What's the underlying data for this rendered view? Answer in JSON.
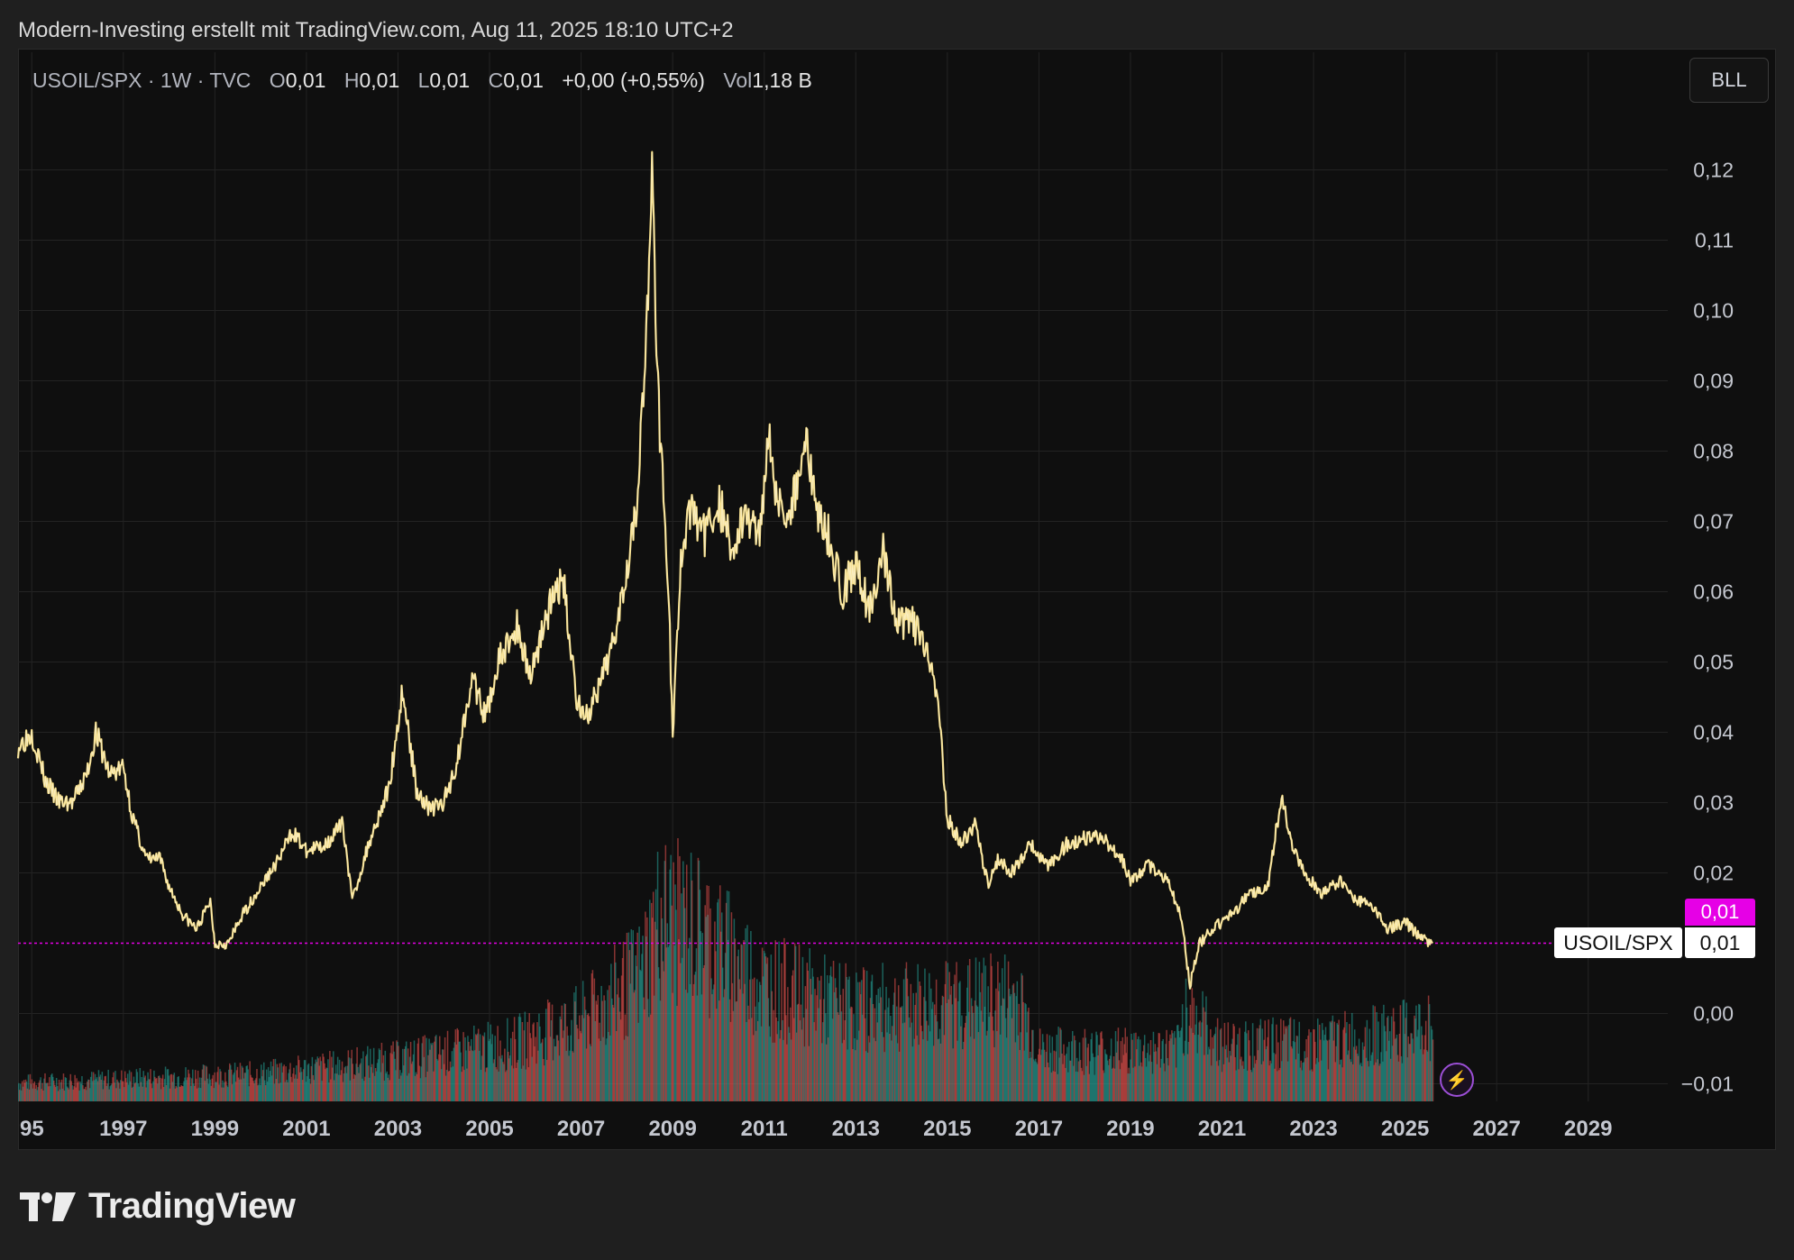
{
  "caption": "Modern-Investing erstellt mit TradingView.com, Aug 11, 2025 18:10 UTC+2",
  "legend": {
    "symbol": "USOIL/SPX · 1W · TVC",
    "open_label": "O",
    "open": "0,01",
    "high_label": "H",
    "high": "0,01",
    "low_label": "L",
    "low": "0,01",
    "close_label": "C",
    "close": "0,01",
    "change": "+0,00 (+0,55%)",
    "vol_label": "Vol",
    "vol": "1,18 B"
  },
  "scale_button": "BLL",
  "price_tags": {
    "pink": "0,01",
    "symbol": "USOIL/SPX",
    "last": "0,01"
  },
  "brand": "TradingView",
  "colors": {
    "background": "#0f0f0f",
    "line": "#f3d97a",
    "line_highlight": "#ffffff",
    "price_line": "#e600e6",
    "volume_up": "#26a69a",
    "volume_down": "#ef5350"
  },
  "chart_data": {
    "type": "line",
    "title": "",
    "xlabel": "",
    "ylabel": "",
    "y_ticks": [
      "0,12",
      "0,11",
      "0,10",
      "0,09",
      "0,08",
      "0,07",
      "0,06",
      "0,05",
      "0,04",
      "0,03",
      "0,02",
      "0,00",
      "−0,01"
    ],
    "y_tick_values": [
      0.12,
      0.11,
      0.1,
      0.09,
      0.08,
      0.07,
      0.06,
      0.05,
      0.04,
      0.03,
      0.02,
      0.0,
      -0.01
    ],
    "x_ticks": [
      "95",
      "1997",
      "1999",
      "2001",
      "2003",
      "2005",
      "2007",
      "2009",
      "2011",
      "2013",
      "2015",
      "2017",
      "2019",
      "2021",
      "2023",
      "2025",
      "2027",
      "2029"
    ],
    "x_tick_values": [
      1995,
      1997,
      1999,
      2001,
      2003,
      2005,
      2007,
      2009,
      2011,
      2013,
      2015,
      2017,
      2019,
      2021,
      2023,
      2025,
      2027,
      2029
    ],
    "xlim": [
      1994.7,
      2030.6
    ],
    "ylim": [
      -0.0125,
      0.1275
    ],
    "last_price": 0.01,
    "grid": true,
    "series": [
      {
        "x": [
          1994.7,
          1995.0,
          1995.3,
          1995.6,
          1995.9,
          1996.2,
          1996.4,
          1996.7,
          1997.0,
          1997.2,
          1997.5,
          1997.8,
          1998.0,
          1998.3,
          1998.6,
          1998.9,
          1999.0,
          1999.3,
          1999.6,
          2000.0,
          2000.4,
          2000.7,
          2001.0,
          2001.4,
          2001.8,
          2002.0,
          2002.4,
          2002.8,
          2003.1,
          2003.4,
          2003.7,
          2004.0,
          2004.3,
          2004.6,
          2004.9,
          2005.2,
          2005.6,
          2005.9,
          2006.2,
          2006.6,
          2006.9,
          2007.1,
          2007.4,
          2007.7,
          2008.0,
          2008.2,
          2008.4,
          2008.55,
          2008.7,
          2008.9,
          2009.0,
          2009.2,
          2009.4,
          2009.7,
          2010.0,
          2010.3,
          2010.6,
          2010.9,
          2011.1,
          2011.3,
          2011.6,
          2011.9,
          2012.1,
          2012.4,
          2012.7,
          2013.0,
          2013.3,
          2013.6,
          2013.9,
          2014.2,
          2014.5,
          2014.8,
          2015.0,
          2015.3,
          2015.6,
          2015.9,
          2016.1,
          2016.4,
          2016.8,
          2017.2,
          2017.6,
          2018.0,
          2018.4,
          2018.8,
          2019.0,
          2019.4,
          2019.8,
          2020.1,
          2020.3,
          2020.5,
          2020.8,
          2021.2,
          2021.6,
          2022.0,
          2022.3,
          2022.5,
          2022.8,
          2023.2,
          2023.6,
          2023.9,
          2024.2,
          2024.6,
          2025.0,
          2025.3,
          2025.6
        ],
        "y": [
          0.038,
          0.04,
          0.033,
          0.03,
          0.03,
          0.034,
          0.04,
          0.034,
          0.035,
          0.028,
          0.022,
          0.022,
          0.018,
          0.014,
          0.012,
          0.016,
          0.01,
          0.01,
          0.014,
          0.018,
          0.022,
          0.026,
          0.023,
          0.024,
          0.027,
          0.016,
          0.025,
          0.032,
          0.046,
          0.032,
          0.029,
          0.03,
          0.036,
          0.048,
          0.042,
          0.05,
          0.055,
          0.048,
          0.056,
          0.062,
          0.045,
          0.042,
          0.046,
          0.053,
          0.064,
          0.072,
          0.092,
          0.118,
          0.086,
          0.062,
          0.04,
          0.066,
          0.072,
          0.068,
          0.073,
          0.066,
          0.071,
          0.068,
          0.084,
          0.072,
          0.072,
          0.082,
          0.073,
          0.068,
          0.06,
          0.064,
          0.057,
          0.066,
          0.055,
          0.056,
          0.052,
          0.044,
          0.028,
          0.024,
          0.027,
          0.018,
          0.022,
          0.02,
          0.024,
          0.021,
          0.024,
          0.025,
          0.025,
          0.022,
          0.019,
          0.021,
          0.019,
          0.014,
          0.004,
          0.01,
          0.012,
          0.014,
          0.017,
          0.018,
          0.031,
          0.024,
          0.02,
          0.017,
          0.019,
          0.016,
          0.016,
          0.012,
          0.013,
          0.011,
          0.01
        ]
      }
    ],
    "volume": {
      "x_start": 1994.7,
      "x_end": 2025.6,
      "profile": [
        {
          "x": 1994.7,
          "level": 0.08
        },
        {
          "x": 2000.0,
          "level": 0.12
        },
        {
          "x": 2003.0,
          "level": 0.18
        },
        {
          "x": 2005.5,
          "level": 0.25
        },
        {
          "x": 2007.0,
          "level": 0.35
        },
        {
          "x": 2008.3,
          "level": 0.55
        },
        {
          "x": 2008.7,
          "level": 0.8
        },
        {
          "x": 2009.5,
          "level": 0.75
        },
        {
          "x": 2011.0,
          "level": 0.5
        },
        {
          "x": 2013.0,
          "level": 0.4
        },
        {
          "x": 2015.0,
          "level": 0.42
        },
        {
          "x": 2016.5,
          "level": 0.45
        },
        {
          "x": 2017.0,
          "level": 0.22
        },
        {
          "x": 2020.0,
          "level": 0.22
        },
        {
          "x": 2020.2,
          "level": 0.4
        },
        {
          "x": 2021.0,
          "level": 0.24
        },
        {
          "x": 2023.0,
          "level": 0.25
        },
        {
          "x": 2025.0,
          "level": 0.3
        },
        {
          "x": 2025.6,
          "level": 0.32
        }
      ]
    }
  }
}
